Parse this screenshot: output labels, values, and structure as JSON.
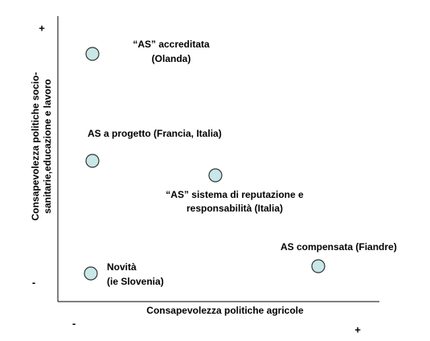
{
  "y_axis": {
    "label": [
      "Consapevolezza politiche socio-",
      "sanitarie,educazione e lavoro"
    ],
    "high": "+",
    "low": "-"
  },
  "x_axis": {
    "label": "Consapevolezza politiche agricole",
    "low": "-",
    "high": "+"
  },
  "nodes": [
    {
      "label": [
        "“AS” accreditata",
        "(Olanda)"
      ]
    },
    {
      "label": [
        "AS a progetto (Francia, Italia)"
      ]
    },
    {
      "label": [
        "“AS” sistema di reputazione e",
        "responsabilità (Italia)"
      ]
    },
    {
      "label": [
        "AS compensata (Fiandre)"
      ]
    },
    {
      "label": [
        "Novità",
        "(ie Slovenia)"
      ]
    }
  ]
}
